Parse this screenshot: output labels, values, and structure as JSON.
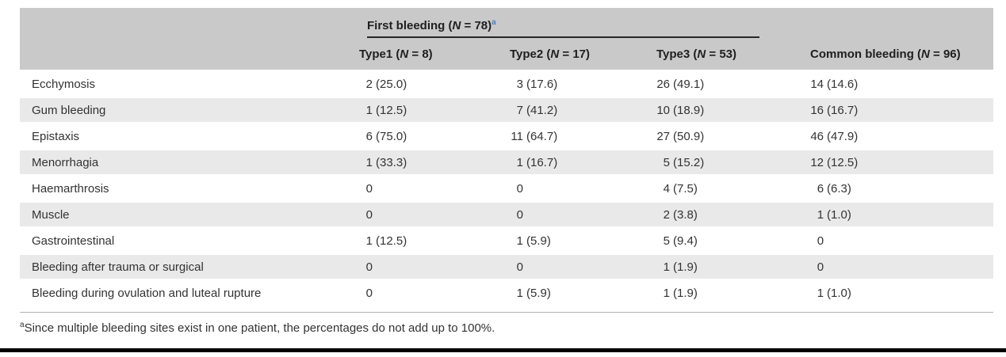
{
  "colors": {
    "header_bg": "#c9c9c9",
    "stripe_bg": "#e9e9e9",
    "text": "#333333",
    "heading_text": "#1f1f1f",
    "superscript_blue": "#4d7fb5",
    "rule_gray": "#b3b3b3",
    "bottom_bar": "#000000"
  },
  "table": {
    "group_header": {
      "prefix": "First bleeding (",
      "n": "N",
      "suffix": " = 78)",
      "sup": "a"
    },
    "sub_headers": [
      {
        "prefix": "Type1 (",
        "n": "N",
        "suffix": " = 8)"
      },
      {
        "prefix": "Type2 (",
        "n": "N",
        "suffix": " = 17)"
      },
      {
        "prefix": "Type3 (",
        "n": "N",
        "suffix": " = 53)"
      }
    ],
    "common_header": {
      "prefix": "Common bleeding (",
      "n": "N",
      "suffix": " = 96)"
    },
    "rows": [
      {
        "label": "Ecchymosis",
        "values": [
          "2 (25.0)",
          "3 (17.6)",
          "26 (49.1)",
          "14 (14.6)"
        ]
      },
      {
        "label": "Gum bleeding",
        "values": [
          "1 (12.5)",
          "7 (41.2)",
          "10 (18.9)",
          "16 (16.7)"
        ]
      },
      {
        "label": "Epistaxis",
        "values": [
          "6 (75.0)",
          "11 (64.7)",
          "27 (50.9)",
          "46 (47.9)"
        ]
      },
      {
        "label": "Menorrhagia",
        "values": [
          "1 (33.3)",
          "1 (16.7)",
          "5 (15.2)",
          "12 (12.5)"
        ]
      },
      {
        "label": "Haemarthrosis",
        "values": [
          "0",
          "0",
          "4 (7.5)",
          "6 (6.3)"
        ]
      },
      {
        "label": "Muscle",
        "values": [
          "0",
          "0",
          "2 (3.8)",
          "1 (1.0)"
        ]
      },
      {
        "label": "Gastrointestinal",
        "values": [
          "1 (12.5)",
          "1 (5.9)",
          "5 (9.4)",
          "0"
        ]
      },
      {
        "label": "Bleeding after trauma or surgical",
        "values": [
          "0",
          "0",
          "1 (1.9)",
          "0"
        ]
      },
      {
        "label": "Bleeding during ovulation and luteal rupture",
        "values": [
          "0",
          "1 (5.9)",
          "1 (1.9)",
          "1 (1.0)"
        ]
      }
    ]
  },
  "footnote": {
    "sup": "a",
    "text": "Since multiple bleeding sites exist in one patient, the percentages do not add up to 100%."
  }
}
